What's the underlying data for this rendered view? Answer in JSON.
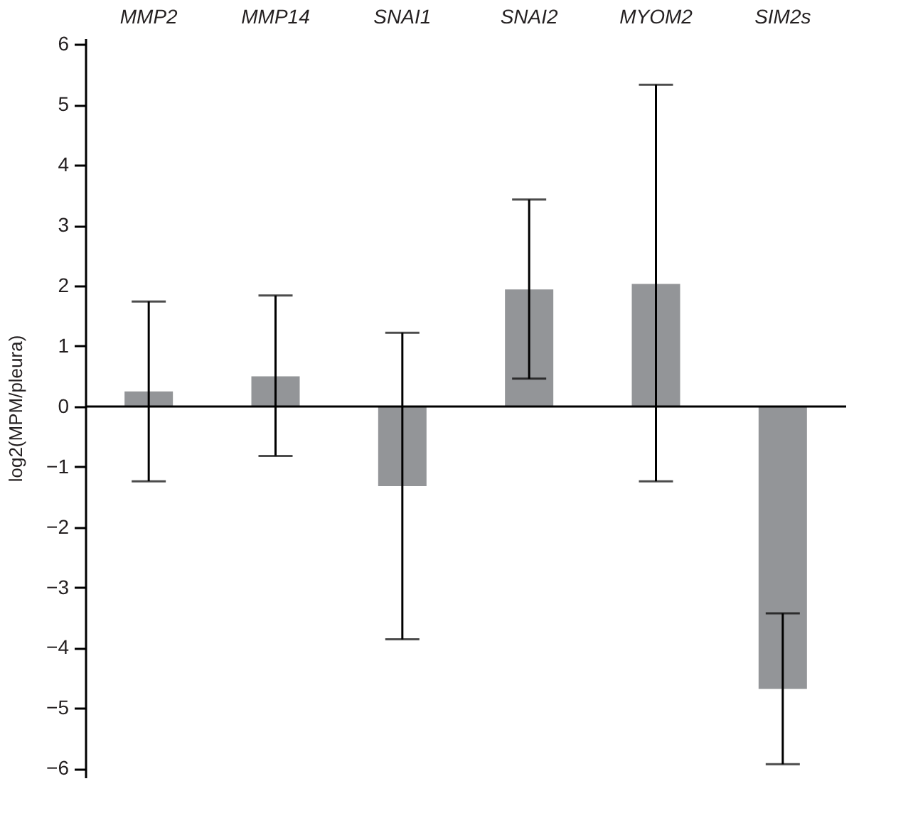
{
  "chart_data": {
    "type": "bar",
    "ylabel": "log2(MPM/pleura)",
    "categories": [
      "MMP2",
      "MMP14",
      "SNAI1",
      "SNAI2",
      "MYOM2",
      "SIM2s"
    ],
    "values": [
      0.25,
      0.5,
      -1.32,
      1.94,
      2.03,
      -4.68
    ],
    "errors": [
      [
        -1.24,
        1.74
      ],
      [
        -0.82,
        1.84
      ],
      [
        -3.86,
        1.22
      ],
      [
        0.46,
        3.43
      ],
      [
        -1.24,
        5.33
      ],
      [
        -5.93,
        -3.43
      ]
    ],
    "color": "#939598",
    "ylim": [
      -6.15,
      6.1
    ],
    "yticks": [
      -6,
      -5,
      -4,
      -3,
      -2,
      -1,
      0,
      1,
      2,
      3,
      4,
      5,
      6
    ],
    "ref_lines": [
      {
        "axis": "y",
        "value": 0,
        "color": "#000000"
      }
    ],
    "grid": false
  }
}
